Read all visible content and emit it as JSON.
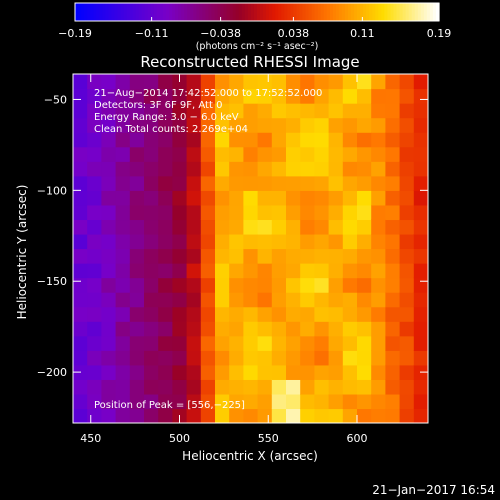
{
  "chart_data": {
    "type": "heatmap",
    "title": "Reconstructed RHESSI Image",
    "xlabel": "Heliocentric X (arcsec)",
    "ylabel": "Heliocentric Y (arcsec)",
    "xlim": [
      440,
      640
    ],
    "ylim": [
      -228,
      -36
    ],
    "x_ticks": [
      450,
      500,
      550,
      600
    ],
    "y_ticks": [
      -50,
      -100,
      -150,
      -200
    ],
    "x_tick_labels": [
      "450",
      "500",
      "550",
      "600"
    ],
    "y_tick_labels": [
      "−50",
      "−100",
      "−150",
      "−200"
    ],
    "colorbar": {
      "label": "(photons cm⁻² s⁻¹ asec⁻²)",
      "range": [
        -0.19,
        0.19
      ],
      "tick_values": [
        -0.19,
        -0.11,
        -0.038,
        0.038,
        0.11,
        0.19
      ],
      "tick_labels": [
        "−0.19",
        "−0.11",
        "−0.038",
        "0.038",
        "0.11",
        "0.19"
      ],
      "colormap": "rainbow-like: blue → purple → red → orange → yellow → white"
    },
    "annotations": [
      "21−Aug−2014 17:42:52.000 to 17:52:52.000",
      "Detectors: 3F 6F 9F, Att 0",
      "Energy Range: 3.0 − 6.0 keV",
      "Clean     Total counts: 2.269e+04"
    ],
    "peak_label": "Position of Peak = [556,−225]",
    "peak": [
      556,
      -225
    ],
    "pixel_size_arcsec": 8,
    "grid": false
  },
  "footer": {
    "date": "21−Jan−2017 16:54"
  },
  "colors": {
    "background": "#000000",
    "text": "#ffffff"
  }
}
